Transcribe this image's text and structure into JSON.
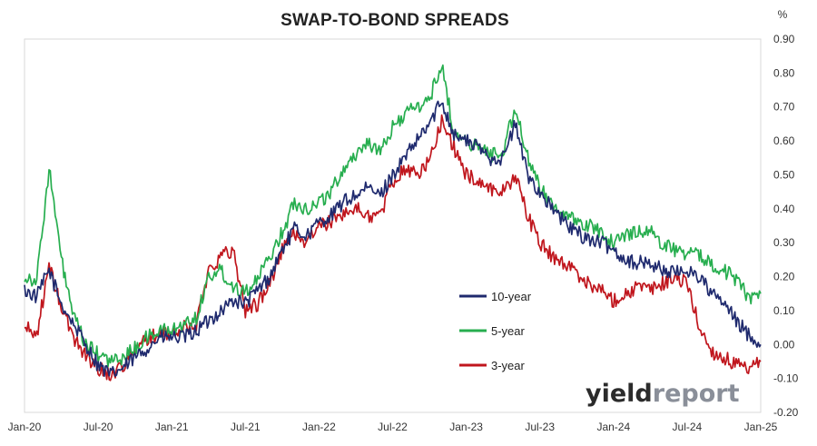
{
  "chart_data": {
    "type": "line",
    "title": "SWAP-TO-BOND SPREADS",
    "y_unit": "%",
    "ylim": [
      -0.2,
      0.9
    ],
    "y_ticks": [
      0.9,
      0.8,
      0.7,
      0.6,
      0.5,
      0.4,
      0.3,
      0.2,
      0.1,
      0.0,
      -0.1,
      -0.2
    ],
    "y_tick_labels": [
      "0.90",
      "0.80",
      "0.70",
      "0.60",
      "0.50",
      "0.40",
      "0.30",
      "0.20",
      "0.10",
      "0.00",
      "-0.10",
      "-0.20"
    ],
    "x_ticks": [
      "2020-01",
      "2020-07",
      "2021-01",
      "2021-07",
      "2022-01",
      "2022-07",
      "2023-01",
      "2023-07",
      "2024-01",
      "2024-07",
      "2025-01"
    ],
    "x_tick_labels": [
      "Jan-20",
      "Jul-20",
      "Jan-21",
      "Jul-21",
      "Jan-22",
      "Jul-22",
      "Jan-23",
      "Jul-23",
      "Jan-24",
      "Jul-24",
      "Jan-25"
    ],
    "x_start": "2020-01",
    "x_end": "2025-01",
    "grid": false,
    "legend_position": "center-right",
    "x": [
      "2020-01",
      "2020-02",
      "2020-03",
      "2020-04",
      "2020-05",
      "2020-06",
      "2020-07",
      "2020-08",
      "2020-09",
      "2020-10",
      "2020-11",
      "2020-12",
      "2021-01",
      "2021-02",
      "2021-03",
      "2021-04",
      "2021-05",
      "2021-06",
      "2021-07",
      "2021-08",
      "2021-09",
      "2021-10",
      "2021-11",
      "2021-12",
      "2022-01",
      "2022-02",
      "2022-03",
      "2022-04",
      "2022-05",
      "2022-06",
      "2022-07",
      "2022-08",
      "2022-09",
      "2022-10",
      "2022-11",
      "2022-12",
      "2023-01",
      "2023-02",
      "2023-03",
      "2023-04",
      "2023-05",
      "2023-06",
      "2023-07",
      "2023-08",
      "2023-09",
      "2023-10",
      "2023-11",
      "2023-12",
      "2024-01",
      "2024-02",
      "2024-03",
      "2024-04",
      "2024-05",
      "2024-06",
      "2024-07",
      "2024-08",
      "2024-09",
      "2024-10",
      "2024-11",
      "2024-12",
      "2025-01"
    ],
    "series": [
      {
        "name": "10-year",
        "color": "#1f2a6e",
        "values": [
          0.16,
          0.14,
          0.22,
          0.12,
          0.06,
          0.0,
          -0.06,
          -0.09,
          -0.07,
          -0.04,
          -0.01,
          0.02,
          0.02,
          0.02,
          0.04,
          0.07,
          0.1,
          0.13,
          0.12,
          0.16,
          0.2,
          0.28,
          0.34,
          0.32,
          0.36,
          0.38,
          0.42,
          0.44,
          0.46,
          0.44,
          0.5,
          0.55,
          0.6,
          0.65,
          0.72,
          0.62,
          0.6,
          0.58,
          0.55,
          0.55,
          0.65,
          0.5,
          0.45,
          0.4,
          0.36,
          0.33,
          0.31,
          0.3,
          0.28,
          0.25,
          0.24,
          0.24,
          0.22,
          0.21,
          0.22,
          0.2,
          0.15,
          0.12,
          0.07,
          0.03,
          0.0
        ]
      },
      {
        "name": "5-year",
        "color": "#27ae4f",
        "values": [
          0.2,
          0.19,
          0.52,
          0.25,
          0.08,
          0.0,
          -0.03,
          -0.05,
          -0.04,
          -0.01,
          0.02,
          0.04,
          0.04,
          0.06,
          0.08,
          0.2,
          0.22,
          0.17,
          0.16,
          0.19,
          0.26,
          0.33,
          0.42,
          0.4,
          0.42,
          0.45,
          0.52,
          0.56,
          0.6,
          0.56,
          0.64,
          0.68,
          0.7,
          0.72,
          0.83,
          0.62,
          0.6,
          0.58,
          0.56,
          0.57,
          0.7,
          0.55,
          0.46,
          0.42,
          0.38,
          0.36,
          0.35,
          0.33,
          0.3,
          0.32,
          0.34,
          0.33,
          0.3,
          0.28,
          0.27,
          0.26,
          0.24,
          0.22,
          0.19,
          0.14,
          0.15
        ]
      },
      {
        "name": "3-year",
        "color": "#c0161d",
        "values": [
          0.05,
          0.03,
          0.23,
          0.11,
          0.02,
          -0.03,
          -0.07,
          -0.09,
          -0.06,
          -0.02,
          0.02,
          0.03,
          0.03,
          0.05,
          0.06,
          0.22,
          0.26,
          0.28,
          0.1,
          0.12,
          0.18,
          0.28,
          0.33,
          0.3,
          0.35,
          0.36,
          0.39,
          0.4,
          0.38,
          0.38,
          0.48,
          0.52,
          0.5,
          0.54,
          0.66,
          0.58,
          0.5,
          0.48,
          0.46,
          0.45,
          0.5,
          0.38,
          0.3,
          0.26,
          0.24,
          0.21,
          0.18,
          0.16,
          0.13,
          0.15,
          0.17,
          0.16,
          0.18,
          0.2,
          0.18,
          0.05,
          -0.02,
          -0.04,
          -0.06,
          -0.08,
          -0.05
        ]
      }
    ]
  },
  "watermark": {
    "part1": "yield",
    "part2": "report",
    "color1": "#2b2b2b",
    "color2": "#8a8f99"
  }
}
